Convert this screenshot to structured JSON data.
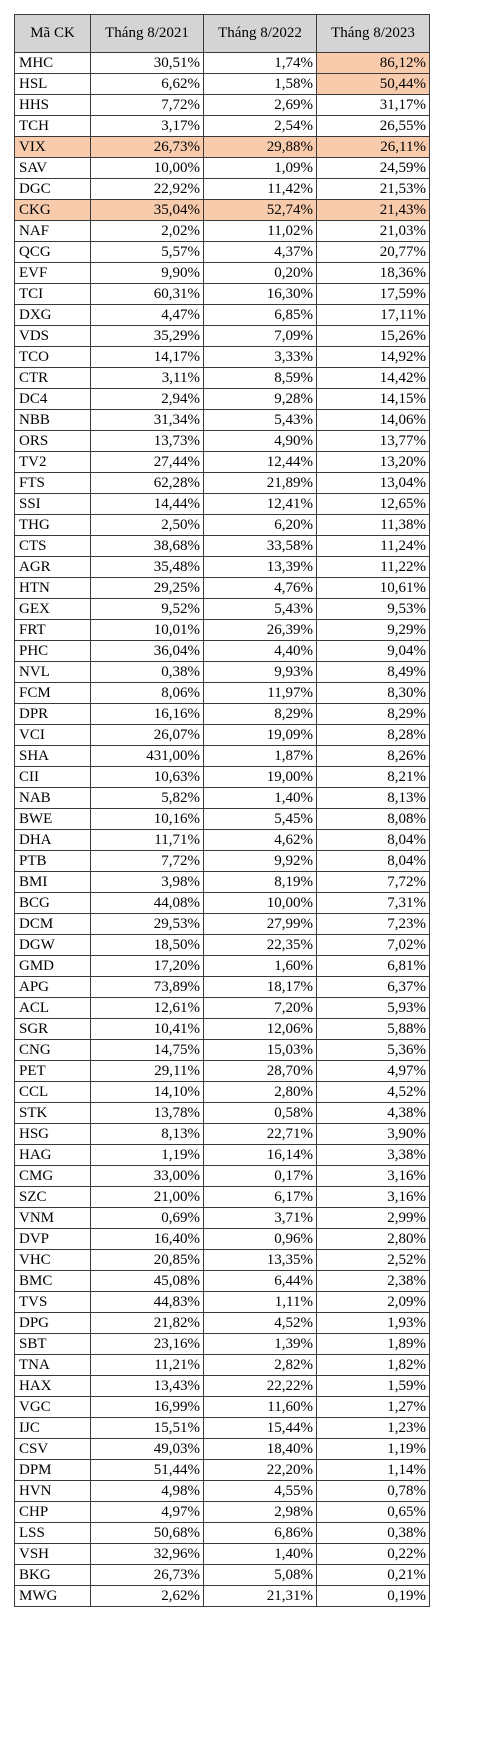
{
  "table": {
    "headers": [
      "Mã CK",
      "Tháng 8/2021",
      "Tháng 8/2022",
      "Tháng 8/2023"
    ],
    "highlight_color": "#f8cbad",
    "rows": [
      [
        "MHC",
        "30,51%",
        "1,74%",
        "86,12%"
      ],
      [
        "HSL",
        "6,62%",
        "1,58%",
        "50,44%"
      ],
      [
        "HHS",
        "7,72%",
        "2,69%",
        "31,17%"
      ],
      [
        "TCH",
        "3,17%",
        "2,54%",
        "26,55%"
      ],
      [
        "VIX",
        "26,73%",
        "29,88%",
        "26,11%"
      ],
      [
        "SAV",
        "10,00%",
        "1,09%",
        "24,59%"
      ],
      [
        "DGC",
        "22,92%",
        "11,42%",
        "21,53%"
      ],
      [
        "CKG",
        "35,04%",
        "52,74%",
        "21,43%"
      ],
      [
        "NAF",
        "2,02%",
        "11,02%",
        "21,03%"
      ],
      [
        "QCG",
        "5,57%",
        "4,37%",
        "20,77%"
      ],
      [
        "EVF",
        "9,90%",
        "0,20%",
        "18,36%"
      ],
      [
        "TCI",
        "60,31%",
        "16,30%",
        "17,59%"
      ],
      [
        "DXG",
        "4,47%",
        "6,85%",
        "17,11%"
      ],
      [
        "VDS",
        "35,29%",
        "7,09%",
        "15,26%"
      ],
      [
        "TCO",
        "14,17%",
        "3,33%",
        "14,92%"
      ],
      [
        "CTR",
        "3,11%",
        "8,59%",
        "14,42%"
      ],
      [
        "DC4",
        "2,94%",
        "9,28%",
        "14,15%"
      ],
      [
        "NBB",
        "31,34%",
        "5,43%",
        "14,06%"
      ],
      [
        "ORS",
        "13,73%",
        "4,90%",
        "13,77%"
      ],
      [
        "TV2",
        "27,44%",
        "12,44%",
        "13,20%"
      ],
      [
        "FTS",
        "62,28%",
        "21,89%",
        "13,04%"
      ],
      [
        "SSI",
        "14,44%",
        "12,41%",
        "12,65%"
      ],
      [
        "THG",
        "2,50%",
        "6,20%",
        "11,38%"
      ],
      [
        "CTS",
        "38,68%",
        "33,58%",
        "11,24%"
      ],
      [
        "AGR",
        "35,48%",
        "13,39%",
        "11,22%"
      ],
      [
        "HTN",
        "29,25%",
        "4,76%",
        "10,61%"
      ],
      [
        "GEX",
        "9,52%",
        "5,43%",
        "9,53%"
      ],
      [
        "FRT",
        "10,01%",
        "26,39%",
        "9,29%"
      ],
      [
        "PHC",
        "36,04%",
        "4,40%",
        "9,04%"
      ],
      [
        "NVL",
        "0,38%",
        "9,93%",
        "8,49%"
      ],
      [
        "FCM",
        "8,06%",
        "11,97%",
        "8,30%"
      ],
      [
        "DPR",
        "16,16%",
        "8,29%",
        "8,29%"
      ],
      [
        "VCI",
        "26,07%",
        "19,09%",
        "8,28%"
      ],
      [
        "SHA",
        "431,00%",
        "1,87%",
        "8,26%"
      ],
      [
        "CII",
        "10,63%",
        "19,00%",
        "8,21%"
      ],
      [
        "NAB",
        "5,82%",
        "1,40%",
        "8,13%"
      ],
      [
        "BWE",
        "10,16%",
        "5,45%",
        "8,08%"
      ],
      [
        "DHA",
        "11,71%",
        "4,62%",
        "8,04%"
      ],
      [
        "PTB",
        "7,72%",
        "9,92%",
        "8,04%"
      ],
      [
        "BMI",
        "3,98%",
        "8,19%",
        "7,72%"
      ],
      [
        "BCG",
        "44,08%",
        "10,00%",
        "7,31%"
      ],
      [
        "DCM",
        "29,53%",
        "27,99%",
        "7,23%"
      ],
      [
        "DGW",
        "18,50%",
        "22,35%",
        "7,02%"
      ],
      [
        "GMD",
        "17,20%",
        "1,60%",
        "6,81%"
      ],
      [
        "APG",
        "73,89%",
        "18,17%",
        "6,37%"
      ],
      [
        "ACL",
        "12,61%",
        "7,20%",
        "5,93%"
      ],
      [
        "SGR",
        "10,41%",
        "12,06%",
        "5,88%"
      ],
      [
        "CNG",
        "14,75%",
        "15,03%",
        "5,36%"
      ],
      [
        "PET",
        "29,11%",
        "28,70%",
        "4,97%"
      ],
      [
        "CCL",
        "14,10%",
        "2,80%",
        "4,52%"
      ],
      [
        "STK",
        "13,78%",
        "0,58%",
        "4,38%"
      ],
      [
        "HSG",
        "8,13%",
        "22,71%",
        "3,90%"
      ],
      [
        "HAG",
        "1,19%",
        "16,14%",
        "3,38%"
      ],
      [
        "CMG",
        "33,00%",
        "0,17%",
        "3,16%"
      ],
      [
        "SZC",
        "21,00%",
        "6,17%",
        "3,16%"
      ],
      [
        "VNM",
        "0,69%",
        "3,71%",
        "2,99%"
      ],
      [
        "DVP",
        "16,40%",
        "0,96%",
        "2,80%"
      ],
      [
        "VHC",
        "20,85%",
        "13,35%",
        "2,52%"
      ],
      [
        "BMC",
        "45,08%",
        "6,44%",
        "2,38%"
      ],
      [
        "TVS",
        "44,83%",
        "1,11%",
        "2,09%"
      ],
      [
        "DPG",
        "21,82%",
        "4,52%",
        "1,93%"
      ],
      [
        "SBT",
        "23,16%",
        "1,39%",
        "1,89%"
      ],
      [
        "TNA",
        "11,21%",
        "2,82%",
        "1,82%"
      ],
      [
        "HAX",
        "13,43%",
        "22,22%",
        "1,59%"
      ],
      [
        "VGC",
        "16,99%",
        "11,60%",
        "1,27%"
      ],
      [
        "IJC",
        "15,51%",
        "15,44%",
        "1,23%"
      ],
      [
        "CSV",
        "49,03%",
        "18,40%",
        "1,19%"
      ],
      [
        "DPM",
        "51,44%",
        "22,20%",
        "1,14%"
      ],
      [
        "HVN",
        "4,98%",
        "4,55%",
        "0,78%"
      ],
      [
        "CHP",
        "4,97%",
        "2,98%",
        "0,65%"
      ],
      [
        "LSS",
        "50,68%",
        "6,86%",
        "0,38%"
      ],
      [
        "VSH",
        "32,96%",
        "1,40%",
        "0,22%"
      ],
      [
        "BKG",
        "26,73%",
        "5,08%",
        "0,21%"
      ],
      [
        "MWG",
        "2,62%",
        "21,31%",
        "0,19%"
      ]
    ],
    "highlighted_cells": [
      [
        0,
        3
      ],
      [
        1,
        3
      ],
      [
        4,
        0
      ],
      [
        4,
        1
      ],
      [
        4,
        2
      ],
      [
        4,
        3
      ],
      [
        7,
        0
      ],
      [
        7,
        1
      ],
      [
        7,
        2
      ],
      [
        7,
        3
      ]
    ]
  }
}
